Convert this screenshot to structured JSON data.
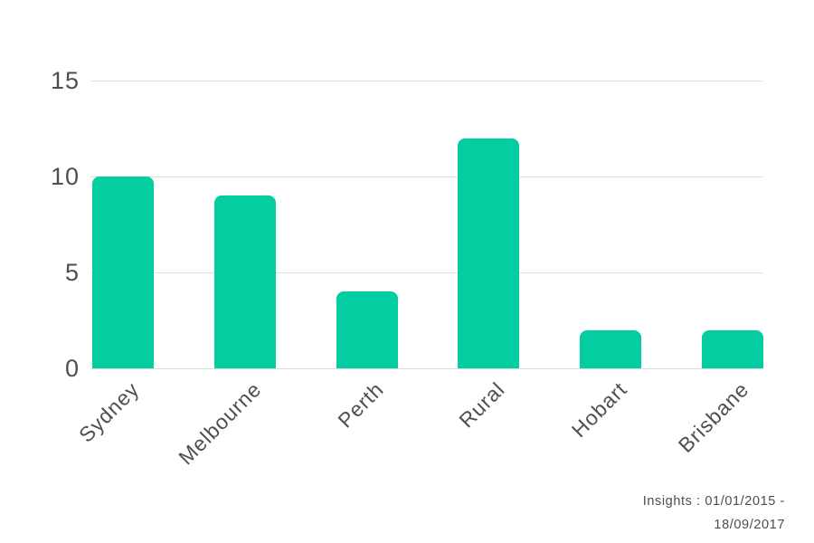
{
  "chart_data": {
    "type": "bar",
    "categories": [
      "Sydney",
      "Melbourne",
      "Perth",
      "Rural",
      "Hobart",
      "Brisbane"
    ],
    "values": [
      10,
      9,
      4,
      12,
      2,
      2
    ],
    "title": "",
    "xlabel": "",
    "ylabel": "",
    "ylim": [
      0,
      15
    ],
    "yticks": [
      0,
      5,
      10,
      15
    ],
    "grid": true,
    "legend": false
  },
  "colors": {
    "bar": "#03cda1",
    "grid": "#e0e0e0",
    "text": "#4f4f4f"
  },
  "footer": {
    "insights_line1": "Insights : 01/01/2015 -",
    "insights_line2": "18/09/2017"
  }
}
